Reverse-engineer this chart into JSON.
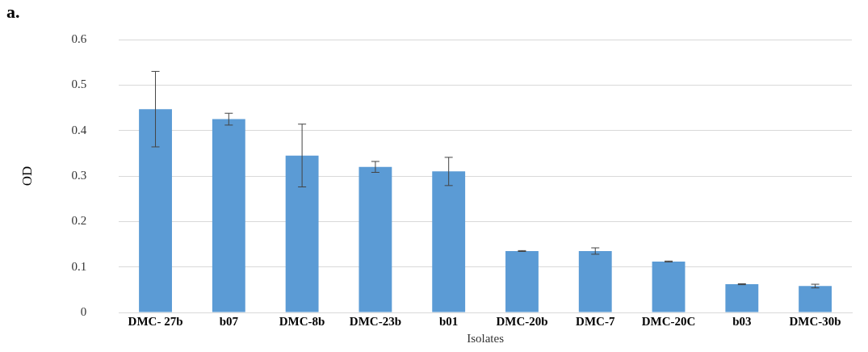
{
  "chart_data": {
    "type": "bar",
    "title": "a.",
    "xlabel": "Isolates",
    "ylabel": "OD",
    "categories": [
      "DMC- 27b",
      "b07",
      "DMC-8b",
      "DMC-23b",
      "b01",
      "DMC-20b",
      "DMC-7",
      "DMC-20C",
      "b03",
      "DMC-30b"
    ],
    "values": [
      0.447,
      0.425,
      0.345,
      0.32,
      0.31,
      0.135,
      0.135,
      0.112,
      0.062,
      0.058
    ],
    "errors": [
      0.083,
      0.013,
      0.069,
      0.012,
      0.031,
      0.001,
      0.007,
      0.001,
      0.001,
      0.004
    ],
    "color": "#5b9bd5",
    "ylim": [
      0,
      0.6
    ],
    "yticks": [
      0,
      0.1,
      0.2,
      0.3,
      0.4,
      0.5,
      0.6
    ],
    "grid": "y",
    "legend": false
  }
}
